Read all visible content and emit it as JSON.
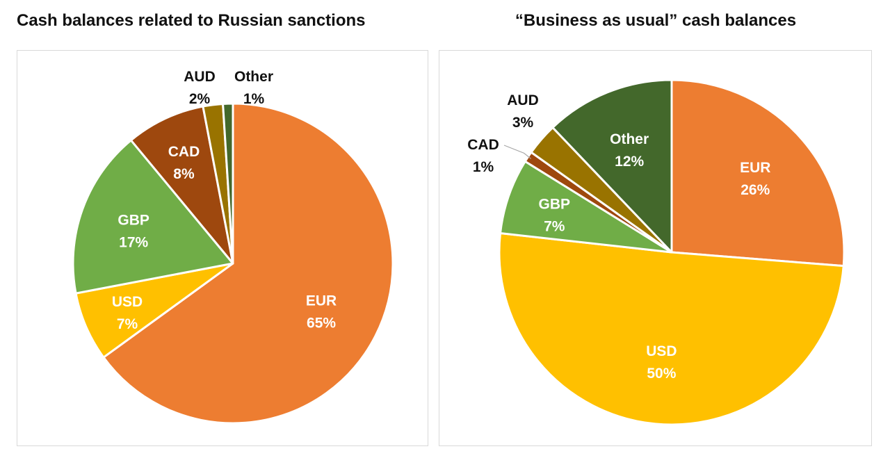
{
  "chart_data": [
    {
      "type": "pie",
      "title": "Cash balances related to Russian sanctions",
      "slices": [
        {
          "label": "EUR",
          "value": 65,
          "value_label": "65%",
          "color": "#ED7D31",
          "text_color": "#FFFFFF",
          "label_placement": "inside"
        },
        {
          "label": "USD",
          "value": 7,
          "value_label": "7%",
          "color": "#FFC000",
          "text_color": "#FFFFFF",
          "label_placement": "inside"
        },
        {
          "label": "GBP",
          "value": 17,
          "value_label": "17%",
          "color": "#70AD47",
          "text_color": "#FFFFFF",
          "label_placement": "inside"
        },
        {
          "label": "CAD",
          "value": 8,
          "value_label": "8%",
          "color": "#9E480E",
          "text_color": "#FFFFFF",
          "label_placement": "inside"
        },
        {
          "label": "AUD",
          "value": 2,
          "value_label": "2%",
          "color": "#997300",
          "text_color": "#111111",
          "label_placement": "outside"
        },
        {
          "label": "Other",
          "value": 1,
          "value_label": "1%",
          "color": "#43682B",
          "text_color": "#111111",
          "label_placement": "outside"
        }
      ]
    },
    {
      "type": "pie",
      "title": "“Business as usual” cash balances",
      "slices": [
        {
          "label": "EUR",
          "value": 26,
          "value_label": "26%",
          "color": "#ED7D31",
          "text_color": "#FFFFFF",
          "label_placement": "inside"
        },
        {
          "label": "USD",
          "value": 50,
          "value_label": "50%",
          "color": "#FFC000",
          "text_color": "#FFFFFF",
          "label_placement": "inside"
        },
        {
          "label": "GBP",
          "value": 7,
          "value_label": "7%",
          "color": "#70AD47",
          "text_color": "#FFFFFF",
          "label_placement": "inside"
        },
        {
          "label": "CAD",
          "value": 1,
          "value_label": "1%",
          "color": "#9E480E",
          "text_color": "#111111",
          "label_placement": "outside"
        },
        {
          "label": "AUD",
          "value": 3,
          "value_label": "3%",
          "color": "#997300",
          "text_color": "#111111",
          "label_placement": "outside"
        },
        {
          "label": "Other",
          "value": 12,
          "value_label": "12%",
          "color": "#43682B",
          "text_color": "#FFFFFF",
          "label_placement": "inside"
        }
      ]
    }
  ]
}
